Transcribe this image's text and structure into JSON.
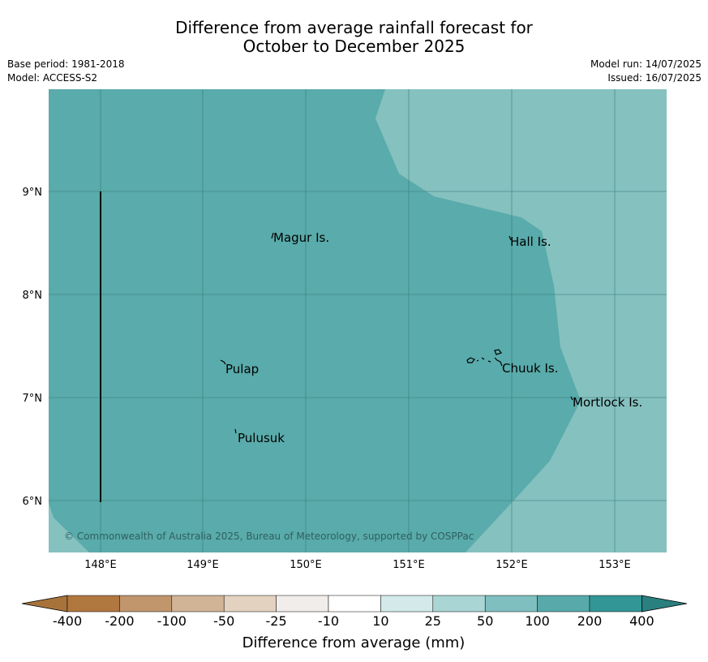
{
  "title": {
    "line1": "Difference from average rainfall forecast for",
    "line2": "October to December 2025"
  },
  "info": {
    "base_period": "Base period: 1981-2018",
    "model": "Model: ACCESS-S2",
    "model_run": "Model run: 14/07/2025",
    "issued": "Issued: 16/07/2025"
  },
  "map": {
    "lat_ticks": [
      "9°N",
      "8°N",
      "7°N",
      "6°N"
    ],
    "lon_ticks": [
      "148°E",
      "149°E",
      "150°E",
      "151°E",
      "152°E",
      "153°E"
    ],
    "places": [
      "Magur Is.",
      "Hall Is.",
      "Pulap",
      "Chuuk Is.",
      "Mortlock Is.",
      "Pulusuk"
    ],
    "copyright": "© Commonwealth of Australia 2025, Bureau of Meteorology, supported by COSPPac",
    "colors": {
      "category_100_200": "#5aabab",
      "category_50_100": "#85c1bf",
      "gridline": "#3d7f7f",
      "coastline": "#000000"
    }
  },
  "colorbar": {
    "title": "Difference from average (mm)",
    "labels": [
      "-400",
      "-200",
      "-100",
      "-50",
      "-25",
      "-10",
      "10",
      "25",
      "50",
      "100",
      "200",
      "400"
    ],
    "colors": [
      "#a8733b",
      "#b0773f",
      "#c1966d",
      "#d1b396",
      "#e4d2c1",
      "#f1edeb",
      "#ffffff",
      "#d4eaea",
      "#a9d5d5",
      "#7fbfbf",
      "#57aaa9",
      "#329696",
      "#2a7f7f"
    ]
  }
}
